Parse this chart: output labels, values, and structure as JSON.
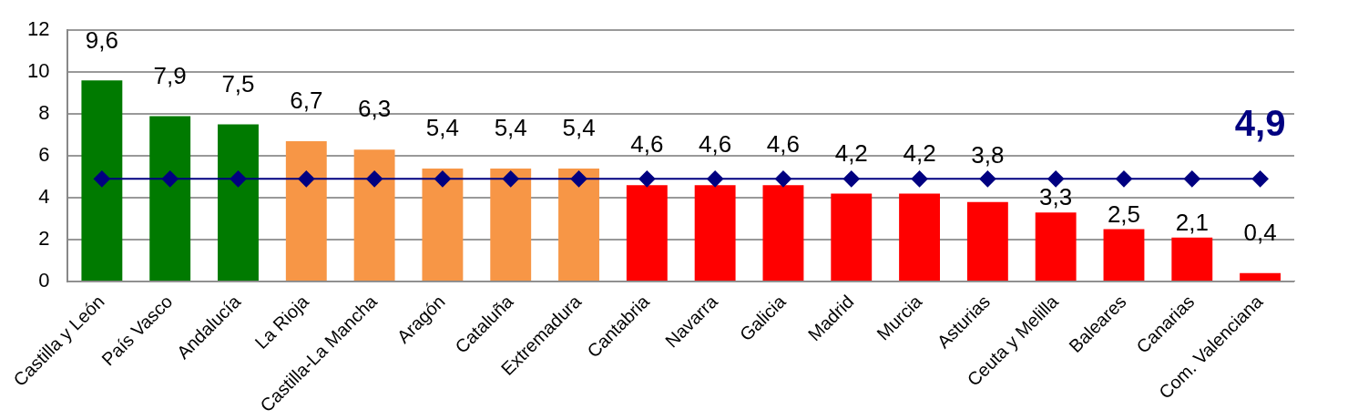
{
  "chart_data": {
    "type": "bar",
    "categories": [
      "Castilla y León",
      "País Vasco",
      "Andalucía",
      "La Rioja",
      "Castilla-La Mancha",
      "Aragón",
      "Cataluña",
      "Extremadura",
      "Cantabria",
      "Navarra",
      "Galicia",
      "Madrid",
      "Murcia",
      "Asturias",
      "Ceuta y Melilla",
      "Baleares",
      "Canarias",
      "Com. Valenciana"
    ],
    "series": [
      {
        "values": [
          9.6,
          7.9,
          7.5,
          6.7,
          6.3,
          5.4,
          5.4,
          5.4,
          4.6,
          4.6,
          4.6,
          4.2,
          4.2,
          3.8,
          3.3,
          2.5,
          2.1,
          0.4
        ],
        "colors": [
          "#007a00",
          "#007a00",
          "#007a00",
          "#f79646",
          "#f79646",
          "#f79646",
          "#f79646",
          "#f79646",
          "#ff0000",
          "#ff0000",
          "#ff0000",
          "#ff0000",
          "#ff0000",
          "#ff0000",
          "#ff0000",
          "#ff0000",
          "#ff0000",
          "#ff0000"
        ],
        "value_labels": [
          "9,6",
          "7,9",
          "7,5",
          "6,7",
          "6,3",
          "5,4",
          "5,4",
          "5,4",
          "4,6",
          "4,6",
          "4,6",
          "4,2",
          "4,2",
          "3,8",
          "3,3",
          "2,5",
          "2,1",
          "0,4"
        ]
      },
      {
        "type": "line",
        "color": "#000080",
        "values": [
          4.9,
          4.9,
          4.9,
          4.9,
          4.9,
          4.9,
          4.9,
          4.9,
          4.9,
          4.9,
          4.9,
          4.9,
          4.9,
          4.9,
          4.9,
          4.9,
          4.9,
          4.9
        ],
        "value_labels": [
          null,
          null,
          null,
          null,
          null,
          null,
          null,
          null,
          null,
          null,
          null,
          null,
          null,
          null,
          null,
          null,
          null,
          "4,9"
        ]
      }
    ],
    "ylim": [
      0,
      12
    ],
    "yticks": [
      0,
      2,
      4,
      6,
      8,
      10,
      12
    ],
    "grid": "y",
    "legend": false,
    "marker": "diamond",
    "line_style": "solid"
  }
}
